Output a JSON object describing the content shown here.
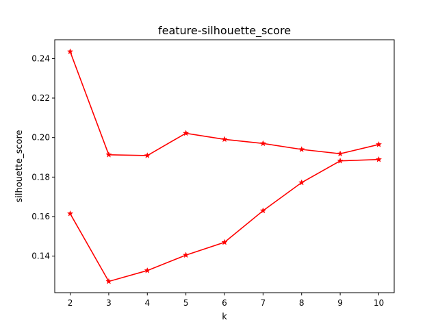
{
  "chart_data": {
    "type": "line",
    "title": "feature-silhouette_score",
    "xlabel": "k",
    "ylabel": "silhouette_score",
    "x": [
      2,
      3,
      4,
      5,
      6,
      7,
      8,
      9,
      10
    ],
    "xticks": [
      "2",
      "3",
      "4",
      "5",
      "6",
      "7",
      "8",
      "9",
      "10"
    ],
    "yticks": [
      "0.14",
      "0.16",
      "0.18",
      "0.20",
      "0.22",
      "0.24"
    ],
    "xlim": [
      1.6,
      10.4
    ],
    "ylim": [
      0.1215,
      0.2495
    ],
    "grid": false,
    "marker": "star",
    "color": "#ff0000",
    "series": [
      {
        "values": [
          0.2435,
          0.1913,
          0.1909,
          0.2022,
          0.1991,
          0.197,
          0.194,
          0.1918,
          0.1965
        ]
      },
      {
        "values": [
          0.1615,
          0.1272,
          0.1327,
          0.1405,
          0.147,
          0.163,
          0.1772,
          0.1882,
          0.1889
        ]
      }
    ]
  }
}
